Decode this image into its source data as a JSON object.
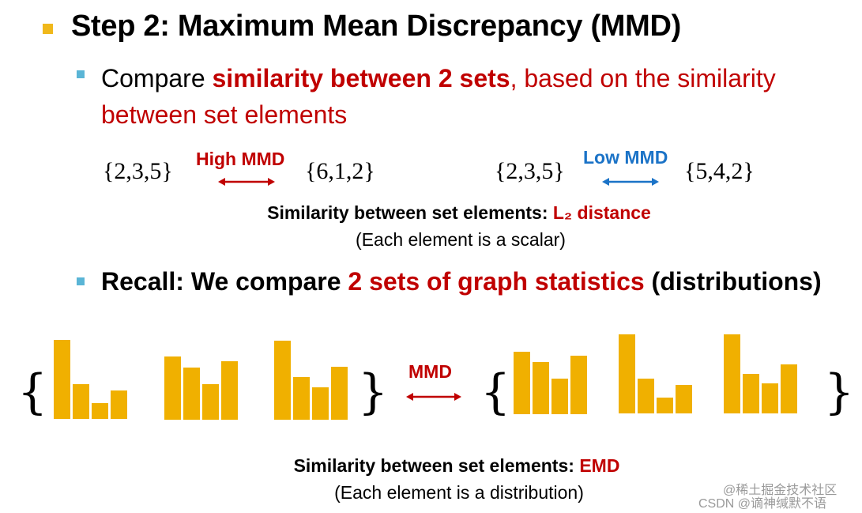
{
  "heading": "Step 2: Maximum Mean Discrepancy (MMD)",
  "bullet1": {
    "prefix": "Compare ",
    "emphasis": "similarity between 2 sets",
    "rest_line1": ", based on the similarity",
    "line2": "between set elements"
  },
  "examples": {
    "left": {
      "set_a": "{2,3,5}",
      "label": "High MMD",
      "set_b": "{6,1,2}"
    },
    "right": {
      "set_a": "{2,3,5}",
      "label": "Low MMD",
      "set_b": "{5,4,2}"
    },
    "caption_prefix": "Similarity between set elements: ",
    "caption_emphasis": "L₂ distance",
    "caption_note": "(Each element is a scalar)"
  },
  "bullet2": {
    "prefix": "Recall: We compare ",
    "emphasis": "2 sets of graph statistics",
    "suffix": " (distributions)"
  },
  "distributions": {
    "open_brace": "{",
    "close_brace": "}",
    "label": "MMD",
    "set_a": [
      [
        1.0,
        0.44,
        0.2,
        0.36
      ],
      [
        0.8,
        0.66,
        0.45,
        0.74
      ],
      [
        1.0,
        0.54,
        0.41,
        0.67
      ]
    ],
    "set_b": [
      [
        0.79,
        0.66,
        0.45,
        0.74
      ],
      [
        1.0,
        0.44,
        0.2,
        0.36
      ],
      [
        1.0,
        0.5,
        0.38,
        0.62
      ]
    ],
    "caption_prefix": "Similarity between set elements: ",
    "caption_emphasis": "EMD",
    "caption_note": "(Each element is a distribution)"
  },
  "watermark": {
    "line1": "@稀土掘金技术社区",
    "line2": "CSDN @谪神缄默不语"
  },
  "colors": {
    "bar": "#f0b000",
    "red": "#c00000",
    "blue": "#1b73c7"
  }
}
